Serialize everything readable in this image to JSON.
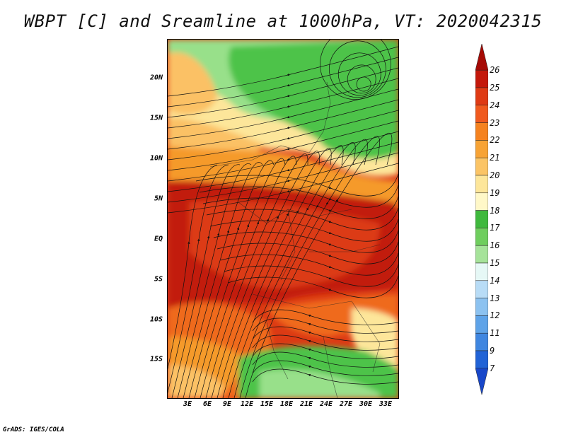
{
  "title": "WBPT [C] and Sreamline at 1000hPa, VT: 2020042315",
  "credit": "GrADS: IGES/COLA",
  "map": {
    "lat_labels": [
      "20N",
      "15N",
      "10N",
      "5N",
      "EQ",
      "5S",
      "10S",
      "15S"
    ],
    "lon_labels": [
      "3E",
      "6E",
      "9E",
      "12E",
      "15E",
      "18E",
      "21E",
      "24E",
      "27E",
      "30E",
      "33E"
    ],
    "colors": {
      "green": "#4dc34a",
      "light_green": "#98e08a",
      "pale_yellow": "#fde69a",
      "light_orange": "#fbc165",
      "orange": "#f59a2c",
      "dark_orange": "#ef6b1f",
      "red": "#dc3a14",
      "dark_red": "#c21b0c"
    }
  },
  "colorbar": {
    "labels": [
      "26",
      "25",
      "24",
      "23",
      "22",
      "21",
      "20",
      "19",
      "18",
      "17",
      "16",
      "15",
      "14",
      "13",
      "12",
      "11",
      "9",
      "7"
    ],
    "colors": [
      "#a60a05",
      "#c4180b",
      "#df3a14",
      "#f05a1e",
      "#f5821f",
      "#f7a335",
      "#fbc465",
      "#fde69a",
      "#fff8c8",
      "#3fb93d",
      "#6fce5e",
      "#a6e39a",
      "#e6f8f6",
      "#b8dcf6",
      "#8cc2f0",
      "#5ea3e8",
      "#3f86e0",
      "#2163d6",
      "#1847c9"
    ]
  }
}
